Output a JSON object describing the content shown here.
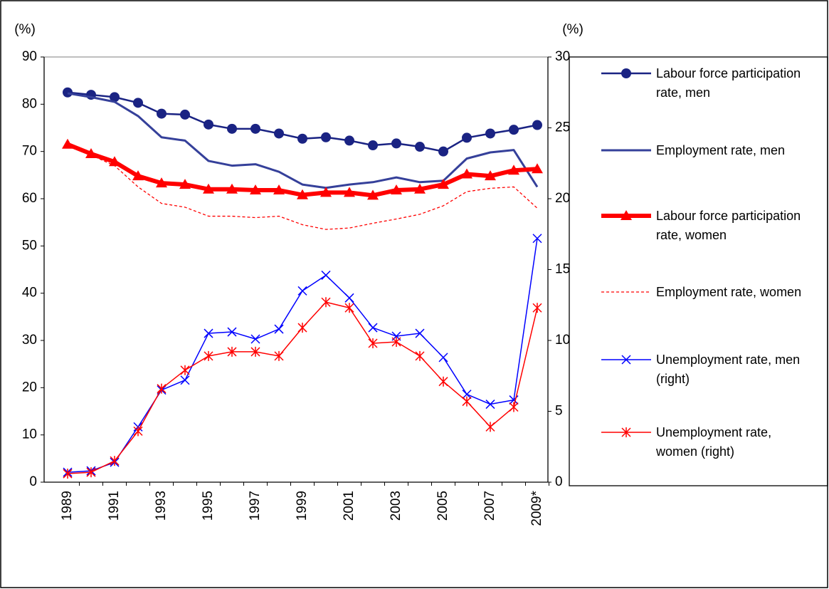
{
  "chart_data": {
    "type": "line",
    "y_label": "(%)",
    "y2_label": "(%)",
    "categories": [
      "1989",
      null,
      "1991",
      null,
      "1993",
      null,
      "1995",
      null,
      "1997",
      null,
      "1999",
      null,
      "2001",
      null,
      "2003",
      null,
      "2005",
      null,
      "2007",
      null,
      "2009*"
    ],
    "ylim": [
      0,
      90
    ],
    "yticks": [
      0,
      10,
      20,
      30,
      40,
      50,
      60,
      70,
      80,
      90
    ],
    "y2lim": [
      0,
      30
    ],
    "y2ticks": [
      0,
      5,
      10,
      15,
      20,
      25,
      30
    ],
    "series": [
      {
        "name": "Labour force participation rate, men",
        "color": "#1a2383",
        "marker": "circle",
        "width": 2.5,
        "dash": false,
        "values": [
          82.5,
          82,
          81.5,
          80.3,
          78,
          77.8,
          75.7,
          74.8,
          74.8,
          73.8,
          72.7,
          73,
          72.3,
          71.3,
          71.7,
          71,
          70,
          72.9,
          73.8,
          74.6,
          75.6
        ]
      },
      {
        "name": "Employment rate, men",
        "color": "#35409a",
        "marker": "none",
        "width": 3,
        "dash": false,
        "values": [
          82.3,
          81.5,
          80.5,
          77.5,
          73,
          72.3,
          68,
          67,
          67.3,
          65.7,
          63,
          62.3,
          63,
          63.5,
          64.5,
          63.5,
          63.8,
          68.5,
          69.8,
          70.3,
          62.5
        ]
      },
      {
        "name": "Labour force participation rate, women",
        "color": "#ff0000",
        "marker": "triangle",
        "width": 6,
        "dash": false,
        "values": [
          71.5,
          69.5,
          67.8,
          64.8,
          63.3,
          63,
          62,
          62,
          61.8,
          61.8,
          60.8,
          61.3,
          61.3,
          60.7,
          61.8,
          62,
          63,
          65.2,
          64.8,
          66,
          66.3
        ]
      },
      {
        "name": "Employment rate, women",
        "color": "#ff0000",
        "marker": "none",
        "width": 1.3,
        "dash": true,
        "values": [
          71.3,
          69.2,
          67,
          62.5,
          59,
          58.2,
          56.3,
          56.3,
          56,
          56.3,
          54.5,
          53.5,
          53.8,
          54.8,
          55.7,
          56.7,
          58.5,
          61.5,
          62.2,
          62.5,
          58
        ]
      },
      {
        "name": "Unemployment rate, men (right)",
        "color": "#0000ff",
        "marker": "x",
        "width": 1.5,
        "dash": false,
        "axis": "y2",
        "values": [
          0.7,
          0.8,
          1.4,
          3.9,
          6.5,
          7.2,
          10.5,
          10.6,
          10.1,
          10.8,
          13.5,
          14.6,
          13,
          10.9,
          10.3,
          10.5,
          8.8,
          6.2,
          5.5,
          5.8,
          17.2
        ]
      },
      {
        "name": "Unemployment rate, women (right)",
        "color": "#ff0000",
        "marker": "asterisk",
        "width": 1.5,
        "dash": false,
        "axis": "y2",
        "values": [
          0.6,
          0.7,
          1.5,
          3.6,
          6.6,
          7.9,
          8.9,
          9.2,
          9.2,
          8.9,
          10.9,
          12.7,
          12.3,
          9.8,
          9.9,
          8.9,
          7.1,
          5.7,
          3.9,
          5.3,
          12.3
        ]
      }
    ]
  }
}
